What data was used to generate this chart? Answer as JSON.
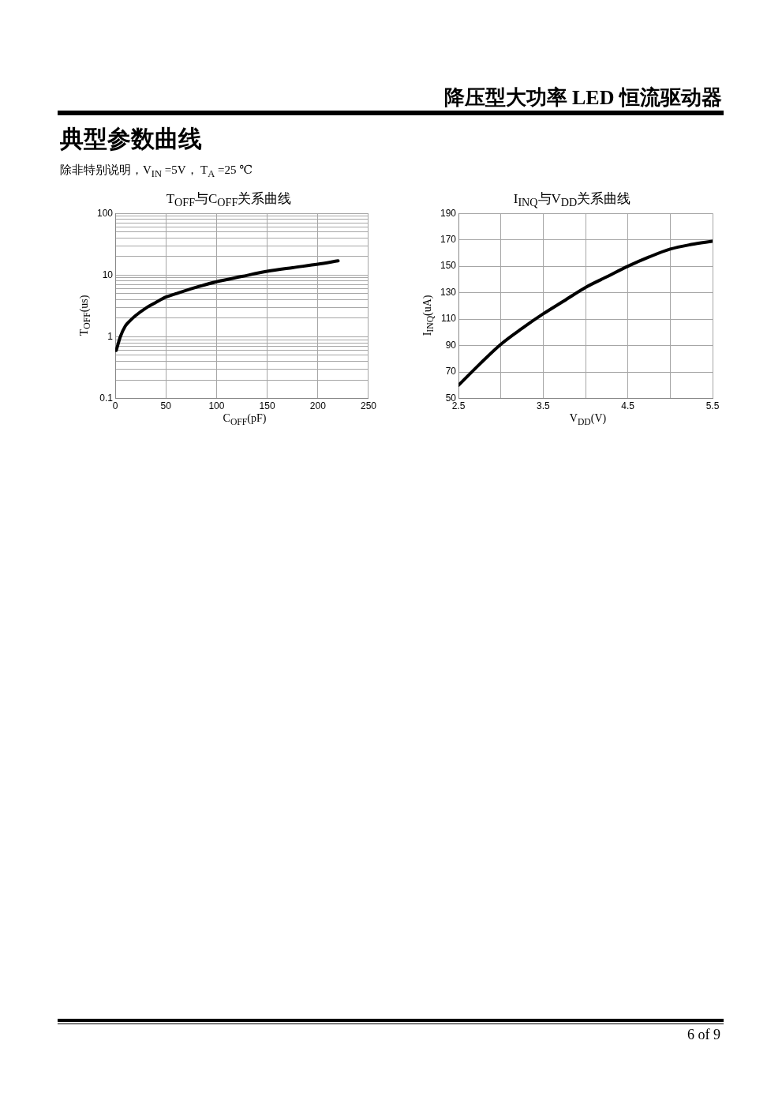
{
  "chart_data": [
    {
      "type": "line",
      "title": "T$_{OFF}$与C$_{OFF}$关系曲线",
      "xlabel": "C$_{OFF}$(pF)",
      "ylabel": "T$_{OFF}$(us)",
      "annotations": [
        "降压型大功率 LED 恒流驱动器",
        "典型参数曲线",
        "除非特别说明，V$_{IN}$ =5V，  T$_{A}$ =25 ℃",
        "6  of  9"
      ],
      "series": [
        {
          "color": "#000000",
          "x": [
            1,
            5,
            10,
            15,
            20,
            30,
            40,
            50,
            60,
            75,
            100,
            125,
            150,
            175,
            200,
            220
          ],
          "values": [
            0.6,
            1.0,
            1.5,
            1.85,
            2.2,
            2.9,
            3.6,
            4.4,
            5.0,
            6.0,
            7.8,
            9.5,
            11.5,
            13.2,
            15,
            17
          ]
        }
      ],
      "xlim": [
        0,
        250
      ],
      "xticks": [
        0,
        50,
        100,
        150,
        200,
        250
      ],
      "ylim": [
        0.1,
        100
      ],
      "yticks": [
        0.1,
        {
          "value": 0.2,
          "label": null
        },
        {
          "value": 0.3,
          "label": null
        },
        {
          "value": 0.4,
          "label": null
        },
        {
          "value": 0.5,
          "label": null
        },
        {
          "value": 0.6,
          "label": null
        },
        {
          "value": 0.7,
          "label": null
        },
        {
          "value": 0.8,
          "label": null
        },
        {
          "value": 0.9,
          "label": null
        },
        1,
        {
          "value": 2,
          "label": null
        },
        {
          "value": 3,
          "label": null
        },
        {
          "value": 4,
          "label": null
        },
        {
          "value": 5,
          "label": null
        },
        {
          "value": 6,
          "label": null
        },
        {
          "value": 7,
          "label": null
        },
        {
          "value": 8,
          "label": null
        },
        {
          "value": 9,
          "label": null
        },
        10,
        {
          "value": 20,
          "label": null
        },
        {
          "value": 30,
          "label": null
        },
        {
          "value": 40,
          "label": null
        },
        {
          "value": 50,
          "label": null
        },
        {
          "value": 60,
          "label": null
        },
        {
          "value": 70,
          "label": null
        },
        {
          "value": 80,
          "label": null
        },
        {
          "value": 90,
          "label": null
        },
        100
      ],
      "log": true,
      "grid": true,
      "legend": false,
      "marker": "none",
      "line_style": "solid"
    },
    {
      "type": "line",
      "title": "I$_{INQ}$与V$_{DD}$关系曲线",
      "xlabel": "V$_{DD}$(V)",
      "ylabel": "I$_{INQ}$(uA)",
      "series": [
        {
          "color": "#000000",
          "x": [
            2.5,
            2.75,
            3.0,
            3.25,
            3.5,
            3.75,
            4.0,
            4.25,
            4.5,
            4.75,
            5.0,
            5.25,
            5.5
          ],
          "values": [
            60,
            76,
            91,
            103,
            114,
            124,
            134,
            142,
            150,
            157,
            163,
            166.5,
            169
          ]
        }
      ],
      "xlim": [
        2.5,
        5.5
      ],
      "xticks": [
        2.5,
        {
          "value": 3,
          "label": null
        },
        3.5,
        {
          "value": 4,
          "label": null
        },
        4.5,
        {
          "value": 5,
          "label": null
        },
        5.5
      ],
      "ylim": [
        50,
        190
      ],
      "yticks": [
        50,
        70,
        90,
        110,
        130,
        150,
        170,
        190
      ],
      "grid": true,
      "legend": false,
      "marker": "none",
      "line_style": "solid"
    }
  ]
}
